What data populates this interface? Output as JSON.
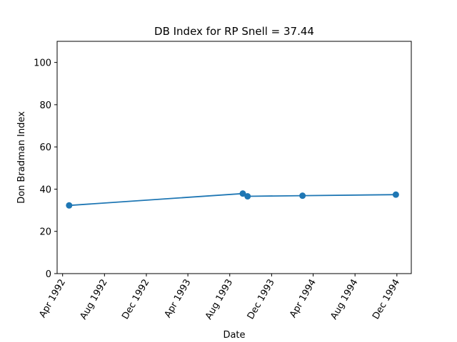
{
  "chart_data": {
    "type": "line",
    "title": "DB Index for RP Snell = 37.44",
    "xlabel": "Date",
    "ylabel": "Don Bradman Index",
    "ylim": [
      0,
      110
    ],
    "xlim": [
      "1992-03-16",
      "1995-01-12"
    ],
    "yticks": [
      0,
      20,
      40,
      60,
      80,
      100
    ],
    "xticks": [
      {
        "date": "1992-04-01",
        "label": "Apr 1992"
      },
      {
        "date": "1992-08-01",
        "label": "Aug 1992"
      },
      {
        "date": "1992-12-01",
        "label": "Dec 1992"
      },
      {
        "date": "1993-04-01",
        "label": "Apr 1993"
      },
      {
        "date": "1993-08-01",
        "label": "Aug 1993"
      },
      {
        "date": "1993-12-01",
        "label": "Dec 1993"
      },
      {
        "date": "1994-04-01",
        "label": "Apr 1994"
      },
      {
        "date": "1994-08-01",
        "label": "Aug 1994"
      },
      {
        "date": "1994-12-01",
        "label": "Dec 1994"
      }
    ],
    "series": [
      {
        "color": "#1f77b4",
        "points": [
          {
            "x": "1992-04-20",
            "y": 32.3
          },
          {
            "x": "1993-09-08",
            "y": 37.9
          },
          {
            "x": "1993-09-22",
            "y": 36.6
          },
          {
            "x": "1994-03-01",
            "y": 36.9
          },
          {
            "x": "1994-11-28",
            "y": 37.4
          }
        ]
      }
    ],
    "grid": false,
    "legend": "none"
  }
}
